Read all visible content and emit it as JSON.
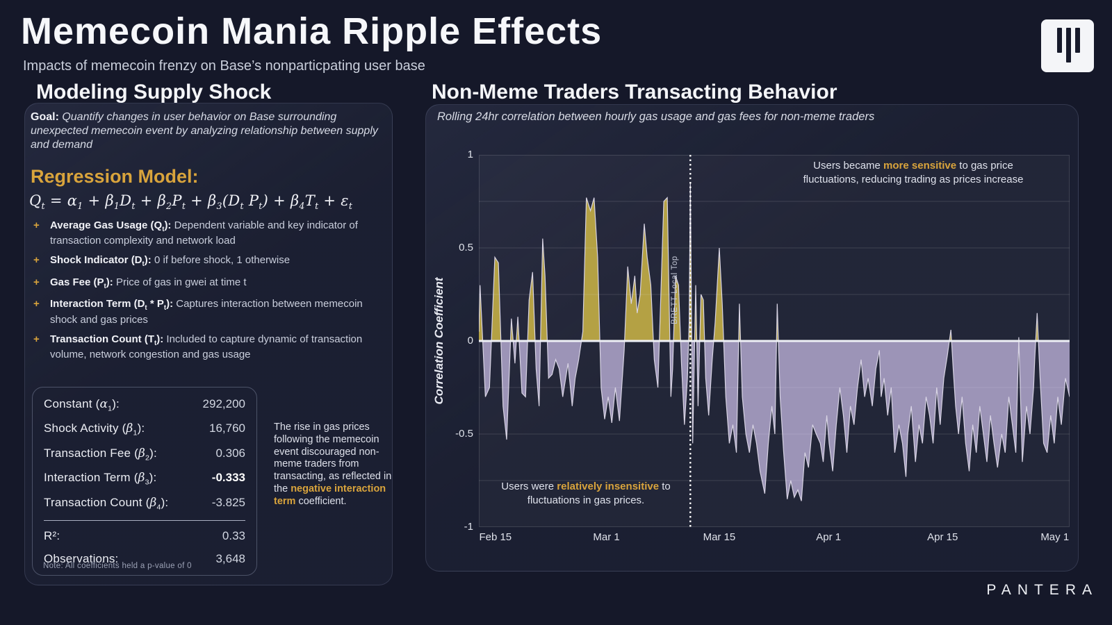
{
  "theme": {
    "accent_gold": "#d9a43c",
    "background": "#151829",
    "panel_background": "#1b1f31"
  },
  "page": {
    "title": "Memecoin Mania Ripple Effects",
    "subtitle": "Impacts of memecoin frenzy on Base’s nonparticpating user base",
    "brand_wordmark": "PANTERA"
  },
  "left_panel": {
    "header": "Modeling Supply Shock",
    "goal": {
      "label": "Goal:",
      "text": " Quantify changes in user behavior on Base surrounding unexpected memecoin event by analyzing relationship between supply and demand"
    },
    "regression_heading": "Regression Model:",
    "formula": [
      {
        "t": "Q"
      },
      {
        "s": "t"
      },
      {
        "t": " = "
      },
      {
        "g": "α"
      },
      {
        "s": "1"
      },
      {
        "t": " + "
      },
      {
        "g": "β"
      },
      {
        "s": "1"
      },
      {
        "t": "D"
      },
      {
        "s": "t"
      },
      {
        "t": " + "
      },
      {
        "g": "β"
      },
      {
        "s": "2"
      },
      {
        "t": "P"
      },
      {
        "s": "t"
      },
      {
        "t": " + "
      },
      {
        "g": "β"
      },
      {
        "s": "3"
      },
      {
        "t": "(D"
      },
      {
        "s": "t"
      },
      {
        "t": " P"
      },
      {
        "s": "t"
      },
      {
        "t": ") + "
      },
      {
        "g": "β"
      },
      {
        "s": "4"
      },
      {
        "t": "T"
      },
      {
        "s": "t"
      },
      {
        "t": " + "
      },
      {
        "g": "ε"
      },
      {
        "s": "t"
      }
    ],
    "bullets": [
      {
        "label": [
          {
            "t": "Average Gas Usage (Q"
          },
          {
            "s": "t"
          },
          {
            "t": "):"
          }
        ],
        "text": " Dependent variable and key indicator of transaction complexity and network load"
      },
      {
        "label": [
          {
            "t": "Shock Indicator (D"
          },
          {
            "s": "t"
          },
          {
            "t": "):"
          }
        ],
        "text": " 0 if before shock, 1 otherwise"
      },
      {
        "label": [
          {
            "t": "Gas Fee (P"
          },
          {
            "s": "t"
          },
          {
            "t": "):"
          }
        ],
        "text": " Price of gas in gwei at time t"
      },
      {
        "label": [
          {
            "t": "Interaction Term (D"
          },
          {
            "s": "t"
          },
          {
            "t": " * P"
          },
          {
            "s": "t"
          },
          {
            "t": "):"
          }
        ],
        "text": " Captures interaction between memecoin shock and gas prices"
      },
      {
        "label": [
          {
            "t": "Transaction Count (T"
          },
          {
            "s": "t"
          },
          {
            "t": "):"
          }
        ],
        "text": " Included to capture dynamic of transaction volume, network congestion and gas usage"
      }
    ],
    "stats": {
      "rows": [
        {
          "label": [
            {
              "t": "Constant ("
            },
            {
              "g": "α"
            },
            {
              "s": "1"
            },
            {
              "t": "):"
            }
          ],
          "value": "292,200",
          "bold_value": false
        },
        {
          "label": [
            {
              "t": "Shock Activity ("
            },
            {
              "g": "β"
            },
            {
              "s": "1"
            },
            {
              "t": "):"
            }
          ],
          "value": "16,760",
          "bold_value": false
        },
        {
          "label": [
            {
              "t": "Transaction Fee  ("
            },
            {
              "g": "β"
            },
            {
              "s": "2"
            },
            {
              "t": "):"
            }
          ],
          "value": "0.306",
          "bold_value": false
        },
        {
          "label": [
            {
              "t": "Interaction Term  ("
            },
            {
              "g": "β"
            },
            {
              "s": "3"
            },
            {
              "t": "):"
            }
          ],
          "value": "-0.333",
          "bold_value": true
        },
        {
          "label": [
            {
              "t": "Transaction Count  ("
            },
            {
              "g": "β"
            },
            {
              "s": "4"
            },
            {
              "t": "):"
            }
          ],
          "value": "-3.825",
          "bold_value": false
        }
      ],
      "summary_rows": [
        {
          "label": [
            {
              "t": "R²:"
            }
          ],
          "value": "0.33",
          "bold_value": false
        },
        {
          "label": [
            {
              "t": "Observations:"
            }
          ],
          "value": "3,648",
          "bold_value": false
        }
      ],
      "note": "Note: All coefficients held a p-value of 0"
    },
    "insight": {
      "pre": "The rise in gas prices following the memecoin event discouraged non-meme traders from transacting, as reflected in the ",
      "highlight": "negative interaction term",
      "post": " coefficient."
    }
  },
  "right_panel": {
    "header": "Non-Meme Traders Transacting Behavior",
    "subtitle": "Rolling 24hr correlation between hourly gas usage and gas fees for non-meme traders",
    "annotations": {
      "sensitive": {
        "pre": "Users became ",
        "highlight": "more sensitive",
        "post": " to gas price fluctuations, reducing trading as prices increase"
      },
      "insensitive": {
        "pre": "Users were ",
        "highlight": "relatively insensitive",
        "post": " to fluctuations in gas prices."
      }
    }
  },
  "chart_data": {
    "type": "area",
    "title": "Non-Meme Traders Transacting Behavior",
    "subtitle": "Rolling 24hr correlation between hourly gas usage and gas fees for non-meme traders",
    "xlabel": "",
    "ylabel": "Correlation Coefficient",
    "ylim": [
      -1,
      1
    ],
    "grid": true,
    "yticks": [
      {
        "label": "1",
        "value": 1
      },
      {
        "label": "0.5",
        "value": 0.5
      },
      {
        "label": "0",
        "value": 0
      },
      {
        "label": "-0.5",
        "value": -0.5
      },
      {
        "label": "-1",
        "value": -1
      }
    ],
    "grid_values": [
      0.75,
      0.5,
      0.25,
      -0.25,
      -0.5,
      -0.75
    ],
    "xticks": [
      {
        "label": "Feb 15",
        "pct": 2.8
      },
      {
        "label": "Mar 1",
        "pct": 21.6
      },
      {
        "label": "Mar 15",
        "pct": 40.7
      },
      {
        "label": "Apr 1",
        "pct": 59.2
      },
      {
        "label": "Apr 15",
        "pct": 78.5
      },
      {
        "label": "May 1",
        "pct": 97.5
      }
    ],
    "event_line": {
      "label": "BRETT Local Top",
      "pct": 35.8
    },
    "colors": {
      "positive_fill": "#b4a144",
      "negative_fill": "#a79dc2",
      "line": "#d8d4e4",
      "zero_line": "#eef0f6",
      "event_line": "#ffffff",
      "grid": "rgba(255,255,255,0.13)"
    },
    "series": [
      {
        "name": "Rolling 24hr correlation (gas usage vs gas fees, non-meme traders)",
        "x_unit": "percent of time axis (Feb 13 – May 1)",
        "points": [
          [
            0,
            0.05
          ],
          [
            0.2,
            0.3
          ],
          [
            1.1,
            -0.3
          ],
          [
            1.8,
            -0.25
          ],
          [
            2.7,
            0.45
          ],
          [
            3.3,
            0.42
          ],
          [
            4.1,
            -0.35
          ],
          [
            4.7,
            -0.53
          ],
          [
            5.5,
            0.12
          ],
          [
            6.1,
            -0.12
          ],
          [
            6.6,
            0.13
          ],
          [
            7.3,
            -0.28
          ],
          [
            7.9,
            -0.3
          ],
          [
            8.5,
            0.22
          ],
          [
            9.1,
            0.37
          ],
          [
            9.7,
            -0.15
          ],
          [
            10.2,
            -0.35
          ],
          [
            10.8,
            0.55
          ],
          [
            11.2,
            0.35
          ],
          [
            11.8,
            -0.2
          ],
          [
            12.4,
            -0.18
          ],
          [
            13.0,
            -0.1
          ],
          [
            13.6,
            -0.15
          ],
          [
            14.2,
            -0.3
          ],
          [
            15.1,
            -0.12
          ],
          [
            15.8,
            -0.35
          ],
          [
            16.3,
            -0.2
          ],
          [
            16.9,
            -0.1
          ],
          [
            17.6,
            0.05
          ],
          [
            18.2,
            0.77
          ],
          [
            18.9,
            0.7
          ],
          [
            19.5,
            0.77
          ],
          [
            20.1,
            0.45
          ],
          [
            20.7,
            -0.25
          ],
          [
            21.3,
            -0.42
          ],
          [
            21.9,
            -0.3
          ],
          [
            22.5,
            -0.44
          ],
          [
            23.1,
            -0.25
          ],
          [
            23.8,
            -0.43
          ],
          [
            24.6,
            -0.05
          ],
          [
            25.2,
            0.4
          ],
          [
            25.8,
            0.2
          ],
          [
            26.4,
            0.35
          ],
          [
            26.8,
            0.15
          ],
          [
            27.3,
            0.25
          ],
          [
            28.0,
            0.63
          ],
          [
            28.5,
            0.45
          ],
          [
            29.1,
            0.3
          ],
          [
            29.7,
            -0.1
          ],
          [
            30.3,
            -0.25
          ],
          [
            31.3,
            0.75
          ],
          [
            31.9,
            0.77
          ],
          [
            32.5,
            -0.3
          ],
          [
            32.8,
            -0.15
          ],
          [
            33.3,
            0.35
          ],
          [
            33.8,
            0.3
          ],
          [
            34.3,
            -0.12
          ],
          [
            34.8,
            -0.45
          ],
          [
            35.3,
            -0.2
          ],
          [
            35.6,
            0.1
          ],
          [
            35.8,
            0.85
          ],
          [
            36.2,
            -0.55
          ],
          [
            36.7,
            0.3
          ],
          [
            37.1,
            -0.35
          ],
          [
            37.6,
            0.25
          ],
          [
            38.0,
            0.22
          ],
          [
            38.4,
            -0.2
          ],
          [
            38.9,
            -0.4
          ],
          [
            39.5,
            -0.1
          ],
          [
            40.0,
            0.1
          ],
          [
            40.7,
            0.5
          ],
          [
            41.2,
            0.2
          ],
          [
            41.8,
            -0.3
          ],
          [
            42.4,
            -0.55
          ],
          [
            43.0,
            -0.45
          ],
          [
            43.6,
            -0.6
          ],
          [
            44.1,
            0.2
          ],
          [
            44.6,
            -0.3
          ],
          [
            45.2,
            -0.5
          ],
          [
            45.8,
            -0.6
          ],
          [
            46.4,
            -0.45
          ],
          [
            47.0,
            -0.55
          ],
          [
            47.6,
            -0.7
          ],
          [
            48.4,
            -0.82
          ],
          [
            49.0,
            -0.55
          ],
          [
            49.6,
            -0.35
          ],
          [
            50.1,
            -0.5
          ],
          [
            50.5,
            0.2
          ],
          [
            51.0,
            -0.3
          ],
          [
            51.6,
            -0.6
          ],
          [
            52.2,
            -0.85
          ],
          [
            52.8,
            -0.75
          ],
          [
            53.4,
            -0.84
          ],
          [
            54.0,
            -0.8
          ],
          [
            54.6,
            -0.86
          ],
          [
            55.2,
            -0.6
          ],
          [
            55.8,
            -0.68
          ],
          [
            56.5,
            -0.45
          ],
          [
            57.1,
            -0.5
          ],
          [
            57.8,
            -0.55
          ],
          [
            58.3,
            -0.65
          ],
          [
            58.9,
            -0.4
          ],
          [
            59.3,
            -0.55
          ],
          [
            59.9,
            -0.7
          ],
          [
            60.5,
            -0.45
          ],
          [
            61.1,
            -0.25
          ],
          [
            61.7,
            -0.4
          ],
          [
            62.3,
            -0.6
          ],
          [
            62.9,
            -0.35
          ],
          [
            63.5,
            -0.45
          ],
          [
            64.1,
            -0.25
          ],
          [
            64.7,
            -0.1
          ],
          [
            65.3,
            -0.3
          ],
          [
            65.9,
            -0.2
          ],
          [
            66.6,
            -0.35
          ],
          [
            67.2,
            -0.15
          ],
          [
            67.8,
            -0.05
          ],
          [
            68.1,
            -0.3
          ],
          [
            68.6,
            -0.2
          ],
          [
            69.2,
            -0.4
          ],
          [
            69.8,
            -0.25
          ],
          [
            70.4,
            -0.6
          ],
          [
            71.1,
            -0.45
          ],
          [
            71.7,
            -0.55
          ],
          [
            72.3,
            -0.73
          ],
          [
            72.6,
            -0.5
          ],
          [
            73.2,
            -0.35
          ],
          [
            73.9,
            -0.65
          ],
          [
            74.5,
            -0.45
          ],
          [
            75.1,
            -0.55
          ],
          [
            75.7,
            -0.3
          ],
          [
            76.3,
            -0.4
          ],
          [
            76.9,
            -0.55
          ],
          [
            77.5,
            -0.25
          ],
          [
            78.1,
            -0.45
          ],
          [
            78.7,
            -0.2
          ],
          [
            79.3,
            -0.08
          ],
          [
            79.9,
            0.06
          ],
          [
            80.3,
            -0.15
          ],
          [
            80.7,
            -0.35
          ],
          [
            81.2,
            -0.5
          ],
          [
            81.8,
            -0.3
          ],
          [
            82.4,
            -0.55
          ],
          [
            83.0,
            -0.7
          ],
          [
            83.6,
            -0.45
          ],
          [
            84.2,
            -0.6
          ],
          [
            84.8,
            -0.35
          ],
          [
            85.4,
            -0.5
          ],
          [
            86.0,
            -0.65
          ],
          [
            86.6,
            -0.4
          ],
          [
            87.2,
            -0.55
          ],
          [
            87.8,
            -0.68
          ],
          [
            88.5,
            -0.5
          ],
          [
            89.1,
            -0.6
          ],
          [
            89.7,
            -0.3
          ],
          [
            90.3,
            -0.45
          ],
          [
            90.9,
            -0.6
          ],
          [
            91.4,
            0.02
          ],
          [
            92.0,
            -0.65
          ],
          [
            92.7,
            -0.35
          ],
          [
            93.3,
            -0.5
          ],
          [
            93.9,
            -0.25
          ],
          [
            94.1,
            -0.1
          ],
          [
            94.5,
            0.15
          ],
          [
            95.0,
            -0.2
          ],
          [
            95.6,
            -0.55
          ],
          [
            96.2,
            -0.6
          ],
          [
            96.8,
            -0.4
          ],
          [
            97.4,
            -0.55
          ],
          [
            98.0,
            -0.3
          ],
          [
            98.6,
            -0.45
          ],
          [
            99.3,
            -0.2
          ],
          [
            100,
            -0.3
          ]
        ]
      }
    ],
    "legend": null
  }
}
